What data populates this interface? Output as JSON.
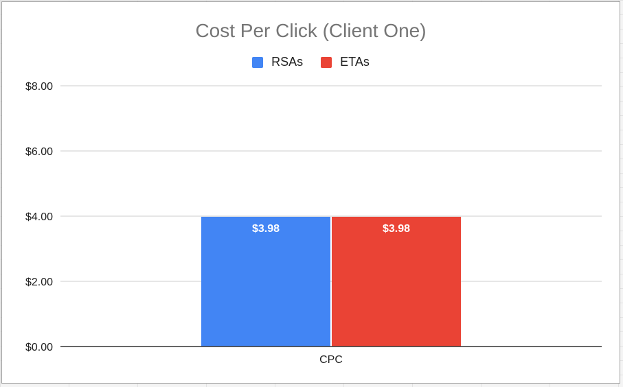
{
  "chart_data": {
    "type": "bar",
    "title": "Cost Per Click (Client One)",
    "categories": [
      "CPC"
    ],
    "series": [
      {
        "name": "RSAs",
        "values": [
          3.98
        ],
        "color": "#4285f4",
        "labels": [
          "$3.98"
        ]
      },
      {
        "name": "ETAs",
        "values": [
          3.98
        ],
        "color": "#ea4335",
        "labels": [
          "$3.98"
        ]
      }
    ],
    "ylim": [
      0,
      8
    ],
    "yticks": [
      0,
      2,
      4,
      6,
      8
    ],
    "ytick_labels": [
      "$0.00",
      "$2.00",
      "$4.00",
      "$6.00",
      "$8.00"
    ],
    "grid": true,
    "legend_position": "top"
  }
}
